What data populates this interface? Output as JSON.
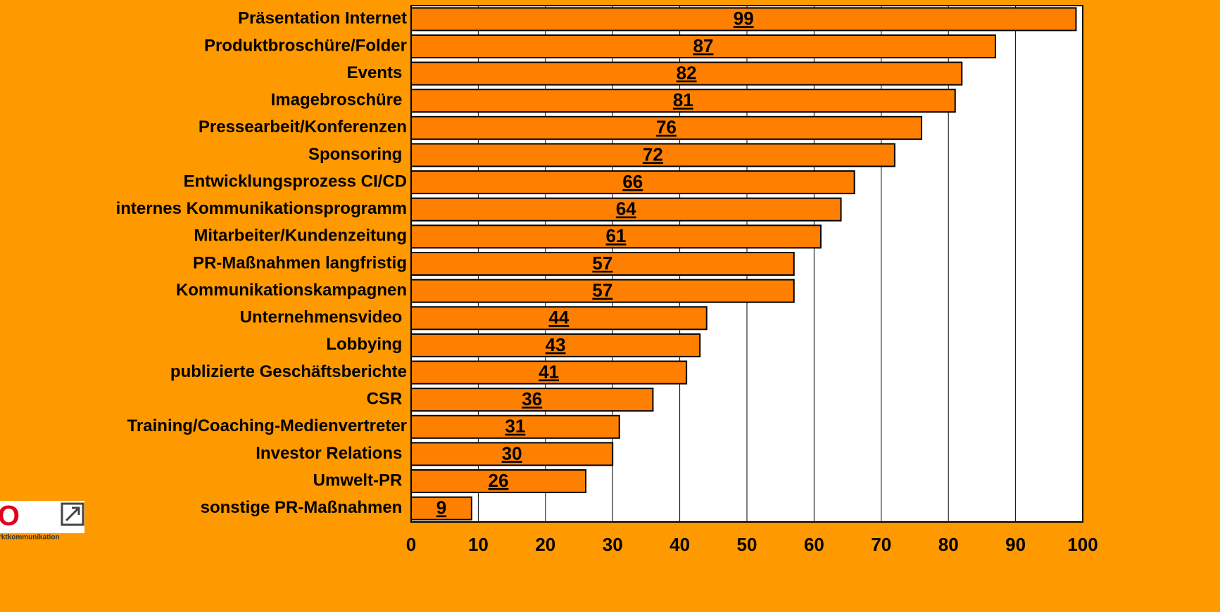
{
  "chart_data": {
    "type": "bar",
    "orientation": "horizontal",
    "categories": [
      "Präsentation Internet",
      "Produktbroschüre/Folder",
      "Events ",
      "Imagebroschüre ",
      "Pressearbeit/Konferenzen",
      "Sponsoring ",
      "Entwicklungsprozess CI/CD",
      "internes Kommunikationsprogramm",
      "Mitarbeiter/Kundenzeitung",
      "PR-Maßnahmen langfristig",
      "Kommunikationskampagnen",
      "Unternehmensvideo ",
      "Lobbying ",
      "publizierte Geschäftsberichte",
      "CSR ",
      "Training/Coaching-Medienvertreter",
      "Investor Relations ",
      "Umwelt-PR ",
      "sonstige PR-Maßnahmen "
    ],
    "values": [
      99,
      87,
      82,
      81,
      76,
      72,
      66,
      64,
      61,
      57,
      57,
      44,
      43,
      41,
      36,
      31,
      30,
      26,
      9
    ],
    "color": "#ff8000",
    "xlim": [
      0,
      100
    ],
    "xticks": [
      0,
      10,
      20,
      30,
      40,
      50,
      60,
      70,
      80,
      90,
      100
    ],
    "grid": true
  },
  "logo": {
    "mark": "KO",
    "text": "Marktkommunikation"
  }
}
